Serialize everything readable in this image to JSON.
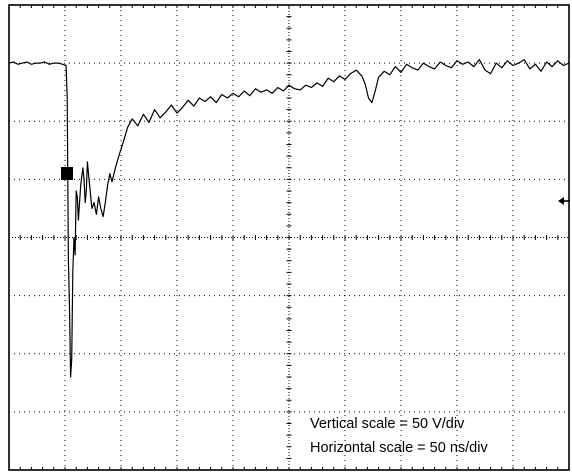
{
  "chart_data": {
    "type": "line",
    "title": "",
    "xlabel": "",
    "ylabel": "",
    "grid": true,
    "xlim": [
      0,
      500
    ],
    "ylim": [
      -200,
      200
    ],
    "annotations": [
      "Vertical scale = 50 V/div",
      "Horizontal scale = 50 ns/div"
    ],
    "series": [
      {
        "x": [
          0,
          4,
          8,
          12,
          16,
          20,
          24,
          28,
          32,
          36,
          40,
          44,
          48,
          51,
          52,
          53,
          54,
          55,
          56,
          57,
          58,
          59,
          60,
          61,
          62,
          64,
          66,
          67,
          68,
          69,
          70,
          71,
          72,
          74,
          76,
          78,
          80,
          82,
          84,
          86,
          88,
          90,
          92,
          95,
          98,
          102,
          106,
          110,
          115,
          120,
          125,
          130,
          135,
          140,
          145,
          150,
          155,
          160,
          165,
          170,
          175,
          180,
          185,
          190,
          195,
          200,
          205,
          210,
          215,
          220,
          225,
          230,
          235,
          240,
          245,
          250,
          255,
          260,
          265,
          270,
          275,
          280,
          285,
          290,
          295,
          300,
          305,
          310,
          315,
          318,
          321,
          324,
          327,
          330,
          335,
          340,
          345,
          350,
          355,
          360,
          365,
          370,
          375,
          380,
          385,
          390,
          395,
          400,
          405,
          410,
          415,
          420,
          425,
          430,
          435,
          440,
          445,
          450,
          455,
          460,
          465,
          470,
          475,
          480,
          485,
          490,
          495,
          500
        ],
        "y": [
          150,
          151,
          149,
          150,
          151,
          149,
          150,
          150,
          151,
          149,
          150,
          150,
          149,
          148,
          120,
          -20,
          -60,
          -120,
          -105,
          -30,
          0,
          -15,
          40,
          35,
          15,
          45,
          60,
          50,
          30,
          40,
          65,
          55,
          45,
          25,
          30,
          20,
          35,
          25,
          18,
          30,
          45,
          55,
          48,
          60,
          70,
          82,
          95,
          102,
          96,
          106,
          99,
          110,
          103,
          108,
          114,
          107,
          112,
          118,
          113,
          120,
          117,
          121,
          116,
          123,
          120,
          124,
          121,
          126,
          122,
          128,
          125,
          127,
          124,
          129,
          126,
          131,
          128,
          127,
          131,
          129,
          133,
          130,
          137,
          134,
          139,
          136,
          141,
          144,
          139,
          132,
          120,
          116,
          126,
          138,
          143,
          140,
          147,
          142,
          149,
          146,
          144,
          150,
          147,
          145,
          151,
          148,
          146,
          152,
          149,
          151,
          147,
          153,
          144,
          141,
          150,
          146,
          152,
          148,
          150,
          153,
          145,
          149,
          143,
          151,
          147,
          152,
          148,
          150
        ]
      }
    ]
  }
}
